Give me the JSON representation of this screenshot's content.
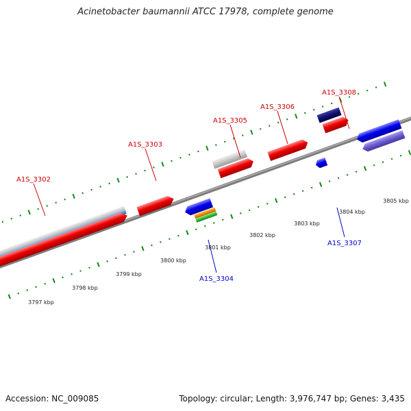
{
  "title": "Acinetobacter baumannii ATCC 17978, complete genome",
  "footer": {
    "accession": "Accession: NC_009085",
    "summary": "Topology: circular; Length: 3,976,747 bp; Genes: 3,435"
  },
  "scale": {
    "tick_labels": [
      "3797 kbp",
      "3798 kbp",
      "3799 kbp",
      "3800 kbp",
      "3801 kbp",
      "3802 kbp",
      "3803 kbp",
      "3804 kbp",
      "3805 kbp"
    ]
  },
  "genes": {
    "forward": [
      "A1S_3302",
      "A1S_3303",
      "A1S_3305",
      "A1S_3306",
      "A1S_3308"
    ],
    "reverse": [
      "A1S_3304",
      "A1S_3307"
    ]
  },
  "colors": {
    "cds_forward": "#ee0000",
    "cds_reverse": "#0000ee",
    "gray_feature": "#c8c8c8",
    "steelblue_feature": "#4f8fcf",
    "navy_feature": "#101070",
    "slate_feature": "#6a5acd",
    "orange_feature": "#f08c00",
    "green_feature": "#33bb33",
    "backbone": "#888888",
    "tick_marks": "#138613",
    "forward_label": "#cc0000",
    "reverse_label": "#0000cc"
  }
}
